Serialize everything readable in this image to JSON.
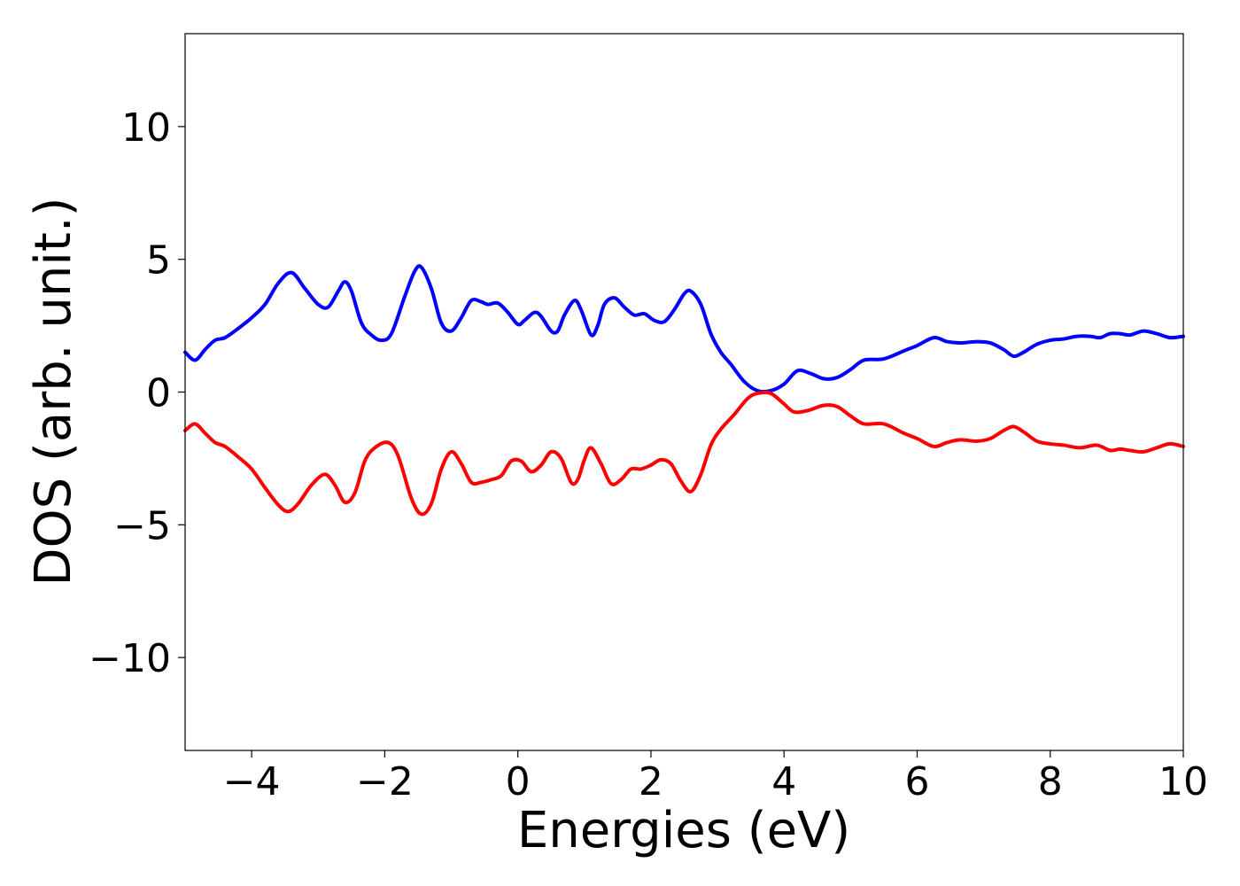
{
  "chart_data": {
    "type": "line",
    "title": "",
    "xlabel": "Energies (eV)",
    "ylabel": "DOS (arb. unit.)",
    "xlim": [
      -5,
      10
    ],
    "ylim": [
      -13.5,
      13.5
    ],
    "grid": false,
    "legend": "none",
    "xticks": [
      {
        "value": -4,
        "label": "−4"
      },
      {
        "value": -2,
        "label": "−2"
      },
      {
        "value": 0,
        "label": "0"
      },
      {
        "value": 2,
        "label": "2"
      },
      {
        "value": 4,
        "label": "4"
      },
      {
        "value": 6,
        "label": "6"
      },
      {
        "value": 8,
        "label": "8"
      },
      {
        "value": 10,
        "label": "10"
      }
    ],
    "yticks": [
      {
        "value": 10,
        "label": "10"
      },
      {
        "value": 5,
        "label": "5"
      },
      {
        "value": 0,
        "label": "0"
      },
      {
        "value": -5,
        "label": "−5"
      },
      {
        "value": -10,
        "label": "−10"
      }
    ],
    "series": [
      {
        "color": "#0000ff",
        "points": [
          [
            -5.0,
            1.5
          ],
          [
            -4.85,
            1.2
          ],
          [
            -4.7,
            1.6
          ],
          [
            -4.55,
            1.95
          ],
          [
            -4.4,
            2.05
          ],
          [
            -4.2,
            2.4
          ],
          [
            -4.0,
            2.8
          ],
          [
            -3.8,
            3.3
          ],
          [
            -3.6,
            4.1
          ],
          [
            -3.4,
            4.5
          ],
          [
            -3.2,
            3.9
          ],
          [
            -3.0,
            3.3
          ],
          [
            -2.85,
            3.2
          ],
          [
            -2.7,
            3.8
          ],
          [
            -2.6,
            4.15
          ],
          [
            -2.5,
            3.8
          ],
          [
            -2.35,
            2.6
          ],
          [
            -2.2,
            2.15
          ],
          [
            -2.05,
            1.95
          ],
          [
            -1.9,
            2.2
          ],
          [
            -1.7,
            3.6
          ],
          [
            -1.55,
            4.55
          ],
          [
            -1.45,
            4.7
          ],
          [
            -1.3,
            3.9
          ],
          [
            -1.15,
            2.6
          ],
          [
            -1.0,
            2.3
          ],
          [
            -0.85,
            2.8
          ],
          [
            -0.7,
            3.45
          ],
          [
            -0.55,
            3.4
          ],
          [
            -0.45,
            3.3
          ],
          [
            -0.3,
            3.35
          ],
          [
            -0.15,
            3.0
          ],
          [
            0.0,
            2.55
          ],
          [
            0.1,
            2.7
          ],
          [
            0.25,
            3.0
          ],
          [
            0.35,
            2.85
          ],
          [
            0.5,
            2.3
          ],
          [
            0.6,
            2.3
          ],
          [
            0.7,
            2.9
          ],
          [
            0.85,
            3.45
          ],
          [
            0.95,
            3.1
          ],
          [
            1.1,
            2.15
          ],
          [
            1.2,
            2.5
          ],
          [
            1.3,
            3.3
          ],
          [
            1.45,
            3.55
          ],
          [
            1.6,
            3.2
          ],
          [
            1.75,
            2.9
          ],
          [
            1.9,
            2.95
          ],
          [
            2.05,
            2.7
          ],
          [
            2.2,
            2.65
          ],
          [
            2.35,
            3.1
          ],
          [
            2.5,
            3.7
          ],
          [
            2.6,
            3.8
          ],
          [
            2.75,
            3.3
          ],
          [
            2.9,
            2.2
          ],
          [
            3.05,
            1.5
          ],
          [
            3.2,
            1.05
          ],
          [
            3.4,
            0.4
          ],
          [
            3.6,
            0.05
          ],
          [
            3.8,
            0.05
          ],
          [
            4.0,
            0.3
          ],
          [
            4.2,
            0.8
          ],
          [
            4.4,
            0.7
          ],
          [
            4.6,
            0.5
          ],
          [
            4.8,
            0.55
          ],
          [
            5.0,
            0.85
          ],
          [
            5.2,
            1.2
          ],
          [
            5.5,
            1.25
          ],
          [
            5.8,
            1.55
          ],
          [
            6.0,
            1.75
          ],
          [
            6.25,
            2.05
          ],
          [
            6.45,
            1.9
          ],
          [
            6.65,
            1.85
          ],
          [
            6.9,
            1.9
          ],
          [
            7.1,
            1.85
          ],
          [
            7.3,
            1.6
          ],
          [
            7.45,
            1.35
          ],
          [
            7.6,
            1.5
          ],
          [
            7.8,
            1.8
          ],
          [
            8.0,
            1.95
          ],
          [
            8.2,
            2.0
          ],
          [
            8.4,
            2.1
          ],
          [
            8.6,
            2.1
          ],
          [
            8.75,
            2.05
          ],
          [
            8.9,
            2.2
          ],
          [
            9.05,
            2.2
          ],
          [
            9.2,
            2.15
          ],
          [
            9.4,
            2.3
          ],
          [
            9.6,
            2.2
          ],
          [
            9.8,
            2.05
          ],
          [
            10.0,
            2.1
          ]
        ]
      },
      {
        "color": "#ff0000",
        "points": [
          [
            -5.0,
            -1.45
          ],
          [
            -4.85,
            -1.2
          ],
          [
            -4.7,
            -1.55
          ],
          [
            -4.55,
            -1.9
          ],
          [
            -4.4,
            -2.05
          ],
          [
            -4.2,
            -2.45
          ],
          [
            -4.0,
            -2.9
          ],
          [
            -3.8,
            -3.6
          ],
          [
            -3.6,
            -4.25
          ],
          [
            -3.45,
            -4.5
          ],
          [
            -3.3,
            -4.2
          ],
          [
            -3.1,
            -3.5
          ],
          [
            -2.9,
            -3.1
          ],
          [
            -2.75,
            -3.5
          ],
          [
            -2.6,
            -4.15
          ],
          [
            -2.45,
            -3.8
          ],
          [
            -2.3,
            -2.6
          ],
          [
            -2.15,
            -2.1
          ],
          [
            -1.95,
            -1.9
          ],
          [
            -1.8,
            -2.4
          ],
          [
            -1.6,
            -4.0
          ],
          [
            -1.45,
            -4.6
          ],
          [
            -1.3,
            -4.2
          ],
          [
            -1.15,
            -2.9
          ],
          [
            -1.0,
            -2.25
          ],
          [
            -0.85,
            -2.7
          ],
          [
            -0.7,
            -3.4
          ],
          [
            -0.55,
            -3.4
          ],
          [
            -0.4,
            -3.3
          ],
          [
            -0.25,
            -3.15
          ],
          [
            -0.1,
            -2.6
          ],
          [
            0.05,
            -2.6
          ],
          [
            0.2,
            -3.0
          ],
          [
            0.35,
            -2.75
          ],
          [
            0.5,
            -2.25
          ],
          [
            0.65,
            -2.5
          ],
          [
            0.8,
            -3.4
          ],
          [
            0.9,
            -3.3
          ],
          [
            1.0,
            -2.55
          ],
          [
            1.1,
            -2.1
          ],
          [
            1.25,
            -2.7
          ],
          [
            1.4,
            -3.45
          ],
          [
            1.55,
            -3.3
          ],
          [
            1.7,
            -2.9
          ],
          [
            1.85,
            -2.9
          ],
          [
            2.0,
            -2.75
          ],
          [
            2.15,
            -2.55
          ],
          [
            2.3,
            -2.7
          ],
          [
            2.45,
            -3.35
          ],
          [
            2.6,
            -3.75
          ],
          [
            2.75,
            -3.1
          ],
          [
            2.9,
            -2.0
          ],
          [
            3.05,
            -1.4
          ],
          [
            3.25,
            -0.85
          ],
          [
            3.45,
            -0.25
          ],
          [
            3.6,
            -0.05
          ],
          [
            3.8,
            -0.05
          ],
          [
            4.0,
            -0.45
          ],
          [
            4.15,
            -0.75
          ],
          [
            4.35,
            -0.7
          ],
          [
            4.6,
            -0.5
          ],
          [
            4.8,
            -0.55
          ],
          [
            5.0,
            -0.9
          ],
          [
            5.2,
            -1.2
          ],
          [
            5.5,
            -1.2
          ],
          [
            5.8,
            -1.55
          ],
          [
            6.0,
            -1.75
          ],
          [
            6.25,
            -2.05
          ],
          [
            6.45,
            -1.9
          ],
          [
            6.65,
            -1.8
          ],
          [
            6.9,
            -1.85
          ],
          [
            7.1,
            -1.75
          ],
          [
            7.3,
            -1.45
          ],
          [
            7.45,
            -1.3
          ],
          [
            7.6,
            -1.5
          ],
          [
            7.8,
            -1.85
          ],
          [
            8.0,
            -1.95
          ],
          [
            8.2,
            -2.0
          ],
          [
            8.45,
            -2.1
          ],
          [
            8.7,
            -2.0
          ],
          [
            8.9,
            -2.2
          ],
          [
            9.05,
            -2.15
          ],
          [
            9.2,
            -2.2
          ],
          [
            9.4,
            -2.25
          ],
          [
            9.6,
            -2.1
          ],
          [
            9.8,
            -1.95
          ],
          [
            10.0,
            -2.05
          ]
        ]
      }
    ]
  }
}
